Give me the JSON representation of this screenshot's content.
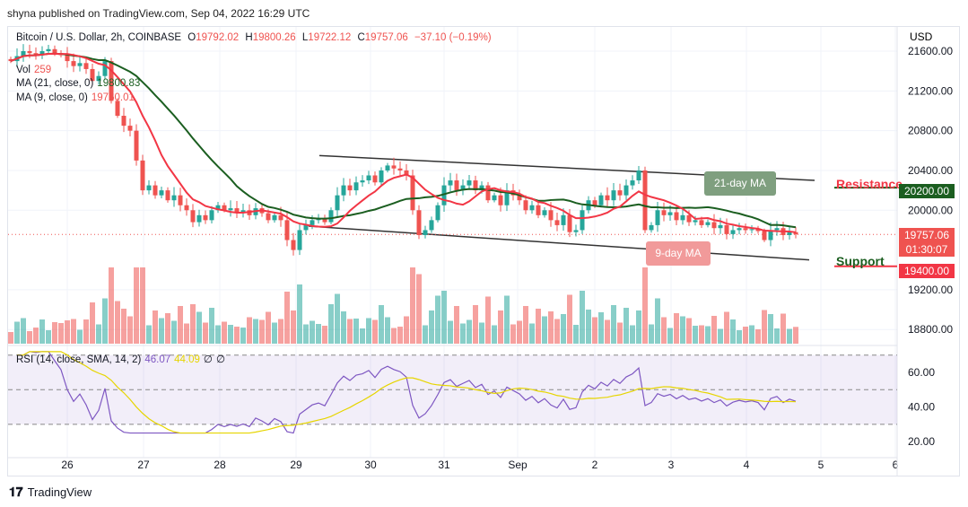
{
  "header": {
    "published": "shyna published on TradingView.com, Sep 04, 2022 16:29 UTC"
  },
  "legend": {
    "symbol": "Bitcoin / U.S. Dollar, 2h, COINBASE",
    "o_label": "O",
    "o": "19792.02",
    "h_label": "H",
    "h": "19800.26",
    "l_label": "L",
    "l": "19722.12",
    "c_label": "C",
    "c": "19757.06",
    "change": "−37.10 (−0.19%)",
    "vol_label": "Vol",
    "vol": "259",
    "ma21_label": "MA (21, close, 0)",
    "ma21": "19800.83",
    "ma9_label": "MA (9, close, 0)",
    "ma9": "19760.01",
    "rsi_label": "RSI (14, close, SMA, 14, 2)",
    "rsi": "46.07",
    "rsi_sma": "44.09",
    "rsi_x1": "∅",
    "rsi_x2": "∅"
  },
  "price_axis": {
    "currency": "USD",
    "current_price": "19757.06",
    "countdown": "01:30:07"
  },
  "annotations": {
    "resistance": "Resistance",
    "resistance_price": "20200.00",
    "support": "Support",
    "support_price": "19400.00",
    "ma21_callout": "21-day MA",
    "ma9_callout": "9-day MA"
  },
  "footer": {
    "brand": "TradingView"
  },
  "colors": {
    "up": "#26a69a",
    "down": "#ef5350",
    "ma21": "#1b5e20",
    "ma9": "#f23645",
    "rsi": "#7e57c2",
    "rsi_sma": "#e6d500"
  },
  "chart_data": {
    "type": "candlestick",
    "interval": "2h",
    "x_ticks": [
      "26",
      "27",
      "28",
      "29",
      "30",
      "31",
      "Sep",
      "2",
      "3",
      "4",
      "5",
      "6"
    ],
    "y_ticks": [
      "21600.00",
      "21200.00",
      "20800.00",
      "20400.00",
      "20000.00",
      "19200.00",
      "18800.00"
    ],
    "ylim": [
      18700,
      21750
    ],
    "rsi_ticks": [
      "60.00",
      "40.00",
      "20.00"
    ],
    "rsi_bands": [
      70,
      50,
      30
    ],
    "closes": [
      21500,
      21550,
      21600,
      21580,
      21560,
      21600,
      21620,
      21580,
      21560,
      21500,
      21450,
      21480,
      21420,
      21300,
      21350,
      21500,
      21100,
      20950,
      20850,
      20800,
      20500,
      20200,
      20250,
      20150,
      20200,
      20100,
      20150,
      20050,
      20000,
      19880,
      19950,
      19900,
      20000,
      20050,
      20000,
      20020,
      19980,
      20000,
      19950,
      20020,
      19970,
      19900,
      19950,
      19900,
      19700,
      19600,
      19800,
      19850,
      19900,
      19920,
      19880,
      20000,
      20150,
      20250,
      20200,
      20280,
      20300,
      20350,
      20280,
      20400,
      20450,
      20420,
      20400,
      20350,
      20000,
      19750,
      19800,
      19900,
      20050,
      20250,
      20300,
      20200,
      20250,
      20300,
      20200,
      20250,
      20100,
      20150,
      20050,
      20200,
      20150,
      20100,
      20000,
      20050,
      19950,
      20000,
      19900,
      19850,
      19950,
      19780,
      19800,
      20000,
      20100,
      20050,
      20150,
      20100,
      20200,
      20150,
      20250,
      20300,
      20400,
      19800,
      19850,
      20000,
      19950,
      19980,
      19900,
      19950,
      19880,
      19900,
      19850,
      19880,
      19820,
      19850,
      19760,
      19800,
      19820,
      19800,
      19810,
      19790,
      19700,
      19800,
      19820,
      19750,
      19780,
      19757.06
    ],
    "channel": {
      "upper": [
        [
          20550,
          20300
        ]
      ],
      "lower": [
        [
          19840,
          19500
        ]
      ]
    }
  }
}
